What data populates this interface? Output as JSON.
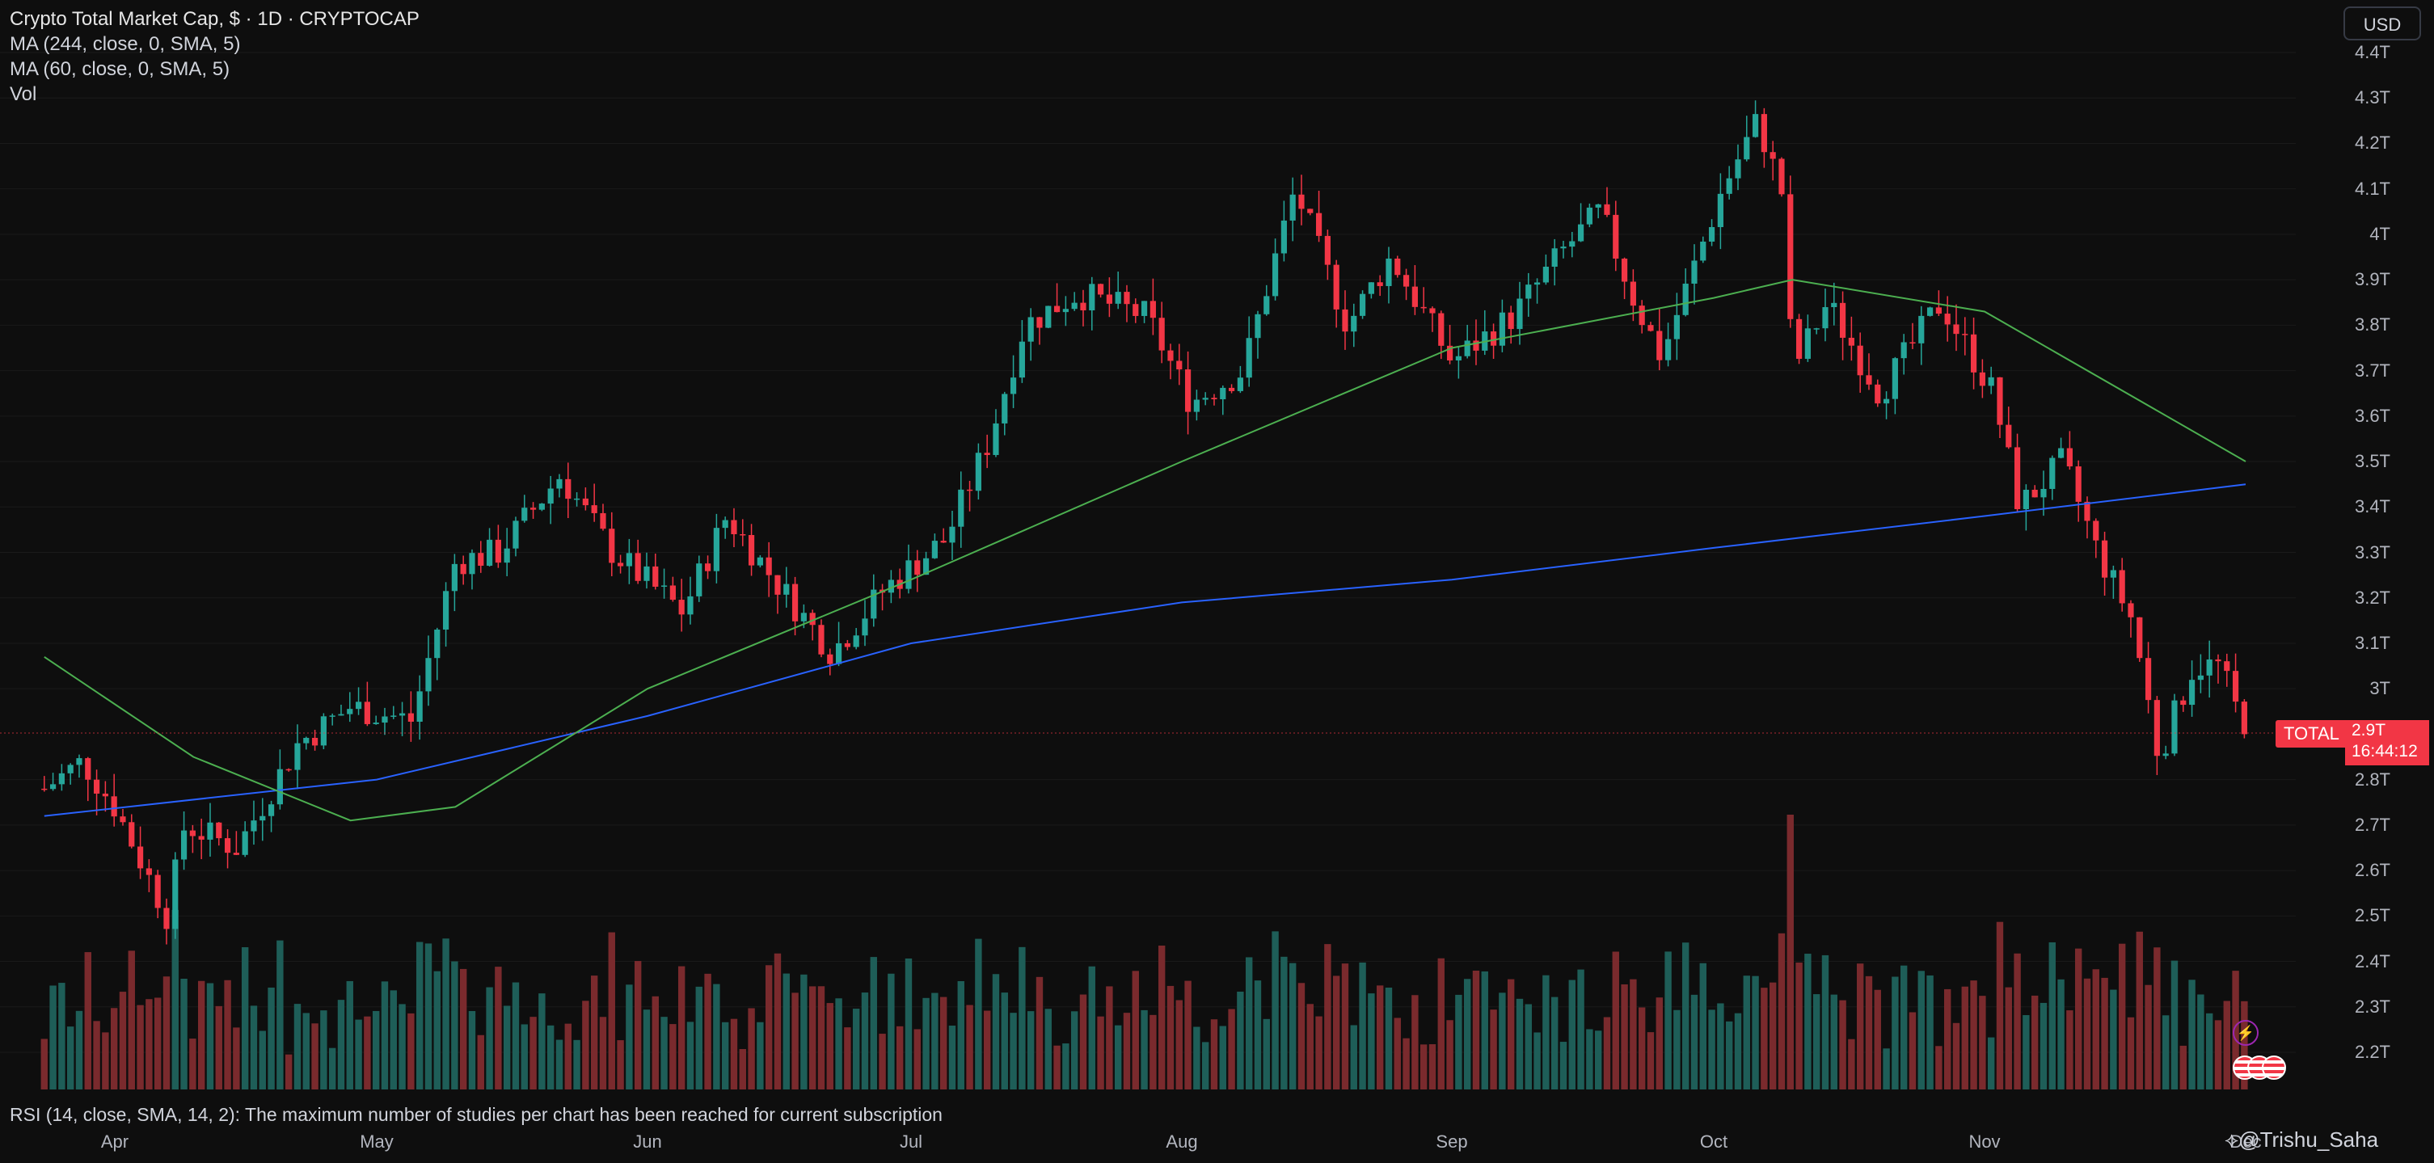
{
  "legend": {
    "title": "Crypto Total Market Cap, $ · 1D · CRYPTOCAP",
    "ma1": "MA (244, close, 0, SMA, 5)",
    "ma2": "MA (60, close, 0, SMA, 5)",
    "vol": "Vol"
  },
  "currency_button": "USD",
  "price_axis": [
    "4.4T",
    "4.3T",
    "4.2T",
    "4.1T",
    "4T",
    "3.9T",
    "3.8T",
    "3.7T",
    "3.6T",
    "3.5T",
    "3.4T",
    "3.3T",
    "3.2T",
    "3.1T",
    "3T",
    "2.8T",
    "2.7T",
    "2.6T",
    "2.5T",
    "2.4T",
    "2.3T",
    "2.2T"
  ],
  "time_axis": [
    "Apr",
    "May",
    "Jun",
    "Jul",
    "Aug",
    "Sep",
    "Oct",
    "Nov",
    "Dec"
  ],
  "symbol_tag": "TOTAL",
  "last_price": "2.9T",
  "countdown": "16:44:12",
  "rsi_message": "RSI (14, close, SMA, 14, 2): The maximum number of studies per chart has been reached for current subscription",
  "watermark": "@Trishu_Saha",
  "colors": {
    "up": "#26a69a",
    "down": "#f23645",
    "vol_up": "#1e5e58",
    "vol_down": "#7a2a2d",
    "ma244": "#2962ff",
    "ma60": "#4caf50",
    "background": "#0e0e0e"
  },
  "chart_data": {
    "type": "candlestick",
    "y_unit": "USD (trillions)",
    "x_range": [
      "Mar 2025",
      "Dec 2025"
    ],
    "ylim": [
      2.15,
      4.42
    ],
    "x_ticks": [
      "Apr",
      "May",
      "Jun",
      "Jul",
      "Aug",
      "Sep",
      "Oct",
      "Nov",
      "Dec"
    ],
    "close_path": [
      [
        "Mar 19",
        2.78
      ],
      [
        "Mar 26",
        2.84
      ],
      [
        "Apr 1",
        2.74
      ],
      [
        "Apr 7",
        2.5
      ],
      [
        "Apr 9",
        2.7
      ],
      [
        "Apr 15",
        2.65
      ],
      [
        "Apr 22",
        2.88
      ],
      [
        "Apr 28",
        2.96
      ],
      [
        "May 5",
        2.93
      ],
      [
        "May 10",
        3.28
      ],
      [
        "May 15",
        3.3
      ],
      [
        "May 22",
        3.47
      ],
      [
        "May 28",
        3.3
      ],
      [
        "Jun 5",
        3.17
      ],
      [
        "Jun 10",
        3.38
      ],
      [
        "Jun 15",
        3.25
      ],
      [
        "Jun 22",
        3.08
      ],
      [
        "Jun 28",
        3.22
      ],
      [
        "Jul 5",
        3.33
      ],
      [
        "Jul 10",
        3.55
      ],
      [
        "Jul 14",
        3.8
      ],
      [
        "Jul 20",
        3.87
      ],
      [
        "Jul 28",
        3.82
      ],
      [
        "Aug 2",
        3.63
      ],
      [
        "Aug 8",
        3.7
      ],
      [
        "Aug 14",
        4.1
      ],
      [
        "Aug 20",
        3.8
      ],
      [
        "Aug 25",
        3.95
      ],
      [
        "Sep 1",
        3.72
      ],
      [
        "Sep 8",
        3.82
      ],
      [
        "Sep 14",
        3.97
      ],
      [
        "Sep 18",
        4.05
      ],
      [
        "Sep 22",
        3.85
      ],
      [
        "Sep 25",
        3.73
      ],
      [
        "Oct 2",
        4.1
      ],
      [
        "Oct 6",
        4.25
      ],
      [
        "Oct 9",
        4.08
      ],
      [
        "Oct 10",
        3.7
      ],
      [
        "Oct 14",
        3.85
      ],
      [
        "Oct 20",
        3.65
      ],
      [
        "Oct 27",
        3.85
      ],
      [
        "Nov 2",
        3.65
      ],
      [
        "Nov 5",
        3.4
      ],
      [
        "Nov 10",
        3.5
      ],
      [
        "Nov 14",
        3.3
      ],
      [
        "Nov 18",
        3.15
      ],
      [
        "Nov 21",
        2.85
      ],
      [
        "Nov 25",
        3.05
      ],
      [
        "Nov 28",
        3.05
      ],
      [
        "Dec 1",
        2.9
      ]
    ],
    "series": [
      {
        "name": "MA (244, close, 0, SMA, 5)",
        "color": "#2962ff",
        "points": [
          [
            "Mar 19",
            2.72
          ],
          [
            "May 1",
            2.8
          ],
          [
            "Jun 1",
            2.94
          ],
          [
            "Jul 1",
            3.1
          ],
          [
            "Aug 1",
            3.19
          ],
          [
            "Sep 1",
            3.24
          ],
          [
            "Oct 1",
            3.31
          ],
          [
            "Nov 1",
            3.38
          ],
          [
            "Dec 1",
            3.45
          ]
        ]
      },
      {
        "name": "MA (60, close, 0, SMA, 5)",
        "color": "#4caf50",
        "points": [
          [
            "Mar 19",
            3.07
          ],
          [
            "Apr 10",
            2.85
          ],
          [
            "Apr 28",
            2.71
          ],
          [
            "May 10",
            2.74
          ],
          [
            "Jun 1",
            3.0
          ],
          [
            "Jul 1",
            3.24
          ],
          [
            "Aug 1",
            3.5
          ],
          [
            "Sep 1",
            3.75
          ],
          [
            "Oct 1",
            3.86
          ],
          [
            "Oct 10",
            3.9
          ],
          [
            "Nov 1",
            3.83
          ],
          [
            "Dec 1",
            3.5
          ]
        ]
      }
    ],
    "volume": {
      "peak_date": "Oct 10",
      "note": "relative volume bars, colored by candle direction"
    },
    "last": {
      "symbol": "TOTAL",
      "value": "2.9T"
    }
  }
}
